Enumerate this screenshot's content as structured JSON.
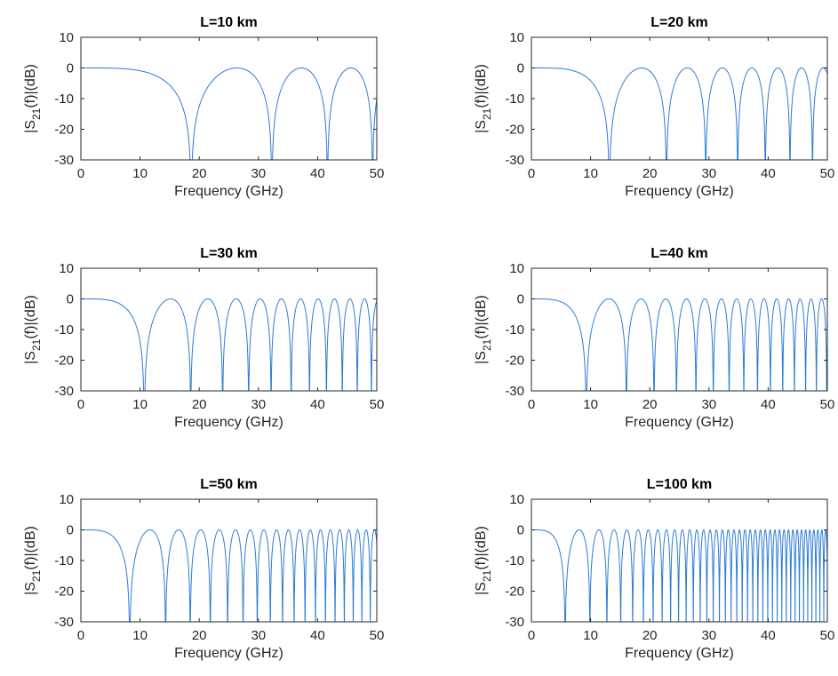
{
  "chart_data": [
    {
      "type": "line",
      "title": "L=10 km",
      "xlabel": "Frequency (GHz)",
      "ylabel_parts": [
        "|S",
        "21",
        "(f)|(dB)"
      ],
      "xlim": [
        0,
        50
      ],
      "ylim": [
        -30,
        10
      ],
      "xticks": [
        "0",
        "10",
        "20",
        "30",
        "40",
        "50"
      ],
      "yticks": [
        "10",
        "0",
        "-10",
        "-20",
        "-30"
      ],
      "grid": false,
      "series": [
        {
          "color": "#2b7bd6",
          "approx": "y = 20*log10(|cos(pi*L*f^2/k)|), curve clipped at -30 dB",
          "nulls_ghz": [
            18.7,
            32.2,
            41.6,
            49.3
          ]
        }
      ]
    },
    {
      "type": "line",
      "title": "L=20 km",
      "xlabel": "Frequency (GHz)",
      "ylabel_parts": [
        "|S",
        "21",
        "(f)|(dB)"
      ],
      "xlim": [
        0,
        50
      ],
      "ylim": [
        -30,
        10
      ],
      "xticks": [
        "0",
        "10",
        "20",
        "30",
        "40",
        "50"
      ],
      "yticks": [
        "10",
        "0",
        "-10",
        "-20",
        "-30"
      ],
      "grid": false,
      "series": [
        {
          "color": "#2b7bd6",
          "approx": "y = 20*log10(|cos(pi*L*f^2/k)|), curve clipped at -30 dB",
          "nulls_ghz": [
            13.2,
            22.8,
            29.5,
            34.9,
            39.6,
            43.8,
            47.5
          ]
        }
      ]
    },
    {
      "type": "line",
      "title": "L=30 km",
      "xlabel": "Frequency (GHz)",
      "ylabel_parts": [
        "|S",
        "21",
        "(f)|(dB)"
      ],
      "xlim": [
        0,
        50
      ],
      "ylim": [
        -30,
        10
      ],
      "xticks": [
        "0",
        "10",
        "20",
        "30",
        "40",
        "50"
      ],
      "yticks": [
        "10",
        "0",
        "-10",
        "-20",
        "-30"
      ],
      "grid": false,
      "series": [
        {
          "color": "#2b7bd6",
          "approx": "y = 20*log10(|cos(pi*L*f^2/k)|), curve clipped at -30 dB",
          "nulls_ghz": [
            10.8,
            18.6,
            24.1,
            28.5,
            32.3,
            35.7,
            38.8,
            41.6,
            44.3,
            46.7,
            49.1
          ]
        }
      ]
    },
    {
      "type": "line",
      "title": "L=40 km",
      "xlabel": "Frequency (GHz)",
      "ylabel_parts": [
        "|S",
        "21",
        "(f)|(dB)"
      ],
      "xlim": [
        0,
        50
      ],
      "ylim": [
        -30,
        10
      ],
      "xticks": [
        "0",
        "10",
        "20",
        "30",
        "40",
        "50"
      ],
      "yticks": [
        "10",
        "0",
        "-10",
        "-20",
        "-30"
      ],
      "grid": false,
      "series": [
        {
          "color": "#2b7bd6",
          "approx": "y = 20*log10(|cos(pi*L*f^2/k)|), curve clipped at -30 dB",
          "nulls_ghz": [
            9.3,
            16.1,
            20.8,
            24.7,
            27.9,
            30.9,
            33.6,
            36.1,
            38.4,
            40.5,
            42.6,
            44.6,
            46.4,
            48.2,
            49.9
          ]
        }
      ]
    },
    {
      "type": "line",
      "title": "L=50 km",
      "xlabel": "Frequency (GHz)",
      "ylabel_parts": [
        "|S",
        "21",
        "(f)|(dB)"
      ],
      "xlim": [
        0,
        50
      ],
      "ylim": [
        -30,
        10
      ],
      "xticks": [
        "0",
        "10",
        "20",
        "30",
        "40",
        "50"
      ],
      "yticks": [
        "10",
        "0",
        "-10",
        "-20",
        "-30"
      ],
      "grid": false,
      "series": [
        {
          "color": "#2b7bd6",
          "approx": "y = 20*log10(|cos(pi*L*f^2/k)|), curve clipped at -30 dB",
          "nulls_ghz": [
            8.3,
            14.4,
            18.6,
            22.0,
            25.0,
            27.6,
            30.0,
            32.3,
            34.3,
            36.3,
            38.1,
            39.9,
            41.5,
            43.1,
            44.6,
            46.1,
            47.5,
            48.9
          ]
        }
      ]
    },
    {
      "type": "line",
      "title": "L=100 km",
      "xlabel": "Frequency (GHz)",
      "ylabel_parts": [
        "|S",
        "21",
        "(f)|(dB)"
      ],
      "xlim": [
        0,
        50
      ],
      "ylim": [
        -30,
        10
      ],
      "xticks": [
        "0",
        "10",
        "20",
        "30",
        "40",
        "50"
      ],
      "yticks": [
        "10",
        "0",
        "-10",
        "-20",
        "-30"
      ],
      "grid": false,
      "series": [
        {
          "color": "#2b7bd6",
          "approx": "y = 20*log10(|cos(pi*L*f^2/k)|), curve clipped at -30 dB",
          "nulls_ghz": [
            5.9,
            10.2,
            13.2,
            15.6,
            17.7,
            19.5,
            21.2,
            22.8,
            24.3,
            25.7,
            27.0,
            28.2,
            29.4,
            30.5,
            31.6,
            32.6,
            33.6,
            34.6,
            35.5,
            36.4,
            37.3,
            38.2,
            39.0,
            39.8,
            40.6,
            41.4,
            42.1,
            42.9,
            43.6,
            44.3,
            45.0,
            45.6,
            46.3,
            47.0,
            47.6,
            48.2,
            48.8,
            49.4
          ]
        }
      ]
    }
  ]
}
